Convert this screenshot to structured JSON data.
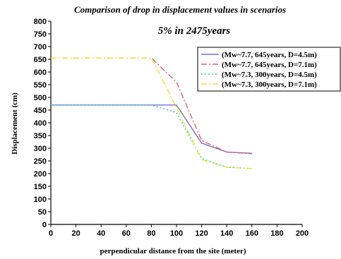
{
  "chart_data": {
    "type": "line",
    "title": "Comparison of drop in displacement values in scenarios",
    "subtitle": "5% in 2475years",
    "xlabel": "perpendicular distance from the site (meter)",
    "ylabel": "Displacement (cm)",
    "xlim": [
      0,
      200
    ],
    "ylim": [
      0,
      800
    ],
    "xticks": [
      0,
      20,
      40,
      60,
      80,
      100,
      120,
      140,
      160,
      180,
      200
    ],
    "yticks": [
      0,
      50,
      100,
      150,
      200,
      250,
      300,
      350,
      400,
      450,
      500,
      550,
      600,
      650,
      700,
      750,
      800
    ],
    "grid": false,
    "legend_position": "top-right",
    "series": [
      {
        "name": "(Mw~7.7, 645years, D=4.5m)",
        "color": "#7b6fc4",
        "dash": "solid",
        "x": [
          0,
          20,
          40,
          60,
          80,
          100,
          120,
          140,
          160
        ],
        "y": [
          470,
          470,
          470,
          470,
          470,
          470,
          320,
          285,
          280
        ]
      },
      {
        "name": "(Mw~7.7, 645years, D=7.1m)",
        "color": "#e0606a",
        "dash": "dashdot",
        "x": [
          0,
          20,
          40,
          60,
          80,
          100,
          120,
          140,
          160
        ],
        "y": [
          655,
          655,
          655,
          655,
          655,
          560,
          330,
          285,
          278
        ]
      },
      {
        "name": "(Mw~7.3, 300years, D=4.5m)",
        "color": "#2ec8c8",
        "dash": "dot",
        "x": [
          0,
          20,
          40,
          60,
          80,
          100,
          120,
          140,
          160
        ],
        "y": [
          470,
          470,
          470,
          470,
          470,
          440,
          260,
          225,
          220
        ]
      },
      {
        "name": "(Mw~7.3, 300years, D=7.1m)",
        "color": "#e6e62e",
        "dash": "dashdot",
        "x": [
          0,
          20,
          40,
          60,
          80,
          100,
          120,
          140,
          160
        ],
        "y": [
          655,
          655,
          655,
          655,
          655,
          460,
          255,
          225,
          220
        ]
      }
    ]
  }
}
